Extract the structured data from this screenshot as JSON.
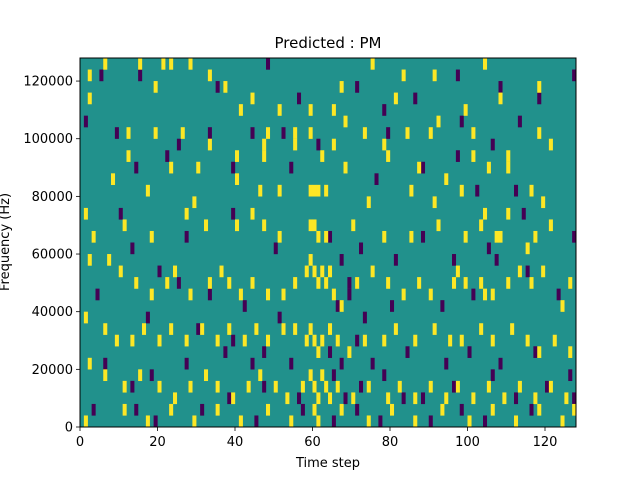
{
  "chart_data": {
    "type": "heatmap",
    "title": "Predicted : PM",
    "xlabel": "Time step",
    "ylabel": "Frequency (Hz)",
    "xlim": [
      0,
      128
    ],
    "ylim": [
      0,
      128000
    ],
    "x_ticks": [
      0,
      20,
      40,
      60,
      80,
      100,
      120
    ],
    "x_tick_labels": [
      "0",
      "20",
      "40",
      "60",
      "80",
      "100",
      "120"
    ],
    "y_ticks": [
      0,
      20000,
      40000,
      60000,
      80000,
      100000,
      120000
    ],
    "y_tick_labels": [
      "0",
      "20000",
      "40000",
      "60000",
      "80000",
      "100000",
      "120000"
    ],
    "grid": false,
    "colormap": "viridis",
    "value_levels": {
      "low": 0,
      "background": 0.5,
      "high": 1
    },
    "colors": {
      "low": "#440154",
      "background": "#21918c",
      "high": "#fde725"
    },
    "cell_size": {
      "time_steps": 1,
      "hz": 4000
    },
    "high_cells": [
      [
        2,
        120000
      ],
      [
        2,
        112000
      ],
      [
        6,
        124000
      ],
      [
        15,
        124000
      ],
      [
        19,
        116000
      ],
      [
        23,
        124000
      ],
      [
        28,
        124000
      ],
      [
        33,
        120000
      ],
      [
        41,
        108000
      ],
      [
        44,
        112000
      ],
      [
        48,
        100000
      ],
      [
        51,
        108000
      ],
      [
        59,
        108000
      ],
      [
        65,
        108000
      ],
      [
        68,
        104000
      ],
      [
        75,
        124000
      ],
      [
        81,
        112000
      ],
      [
        91,
        120000
      ],
      [
        92,
        104000
      ],
      [
        99,
        108000
      ],
      [
        104,
        124000
      ],
      [
        108,
        112000
      ],
      [
        121,
        96000
      ],
      [
        118,
        116000
      ],
      [
        12,
        100000
      ],
      [
        19,
        100000
      ],
      [
        26,
        100000
      ],
      [
        33,
        96000
      ],
      [
        40,
        92000
      ],
      [
        47,
        96000
      ],
      [
        55,
        100000
      ],
      [
        59,
        100000
      ],
      [
        65,
        96000
      ],
      [
        73,
        100000
      ],
      [
        78,
        96000
      ],
      [
        84,
        100000
      ],
      [
        90,
        100000
      ],
      [
        101,
        100000
      ],
      [
        110,
        92000
      ],
      [
        118,
        100000
      ],
      [
        12,
        92000
      ],
      [
        23,
        88000
      ],
      [
        30,
        88000
      ],
      [
        47,
        92000
      ],
      [
        55,
        96000
      ],
      [
        62,
        92000
      ],
      [
        68,
        88000
      ],
      [
        79,
        92000
      ],
      [
        87,
        88000
      ],
      [
        94,
        84000
      ],
      [
        101,
        92000
      ],
      [
        105,
        88000
      ],
      [
        110,
        88000
      ],
      [
        116,
        80000
      ],
      [
        8,
        84000
      ],
      [
        17,
        80000
      ],
      [
        29,
        76000
      ],
      [
        40,
        84000
      ],
      [
        46,
        80000
      ],
      [
        51,
        80000
      ],
      [
        59,
        80000
      ],
      [
        60,
        80000
      ],
      [
        61,
        80000
      ],
      [
        63,
        80000
      ],
      [
        74,
        76000
      ],
      [
        85,
        80000
      ],
      [
        91,
        76000
      ],
      [
        98,
        80000
      ],
      [
        104,
        72000
      ],
      [
        110,
        72000
      ],
      [
        119,
        76000
      ],
      [
        1,
        72000
      ],
      [
        3,
        64000
      ],
      [
        11,
        68000
      ],
      [
        18,
        64000
      ],
      [
        27,
        72000
      ],
      [
        32,
        68000
      ],
      [
        40,
        68000
      ],
      [
        44,
        72000
      ],
      [
        47,
        68000
      ],
      [
        51,
        64000
      ],
      [
        59,
        68000
      ],
      [
        60,
        68000
      ],
      [
        61,
        64000
      ],
      [
        63,
        64000
      ],
      [
        70,
        68000
      ],
      [
        78,
        64000
      ],
      [
        85,
        64000
      ],
      [
        92,
        68000
      ],
      [
        99,
        64000
      ],
      [
        103,
        68000
      ],
      [
        107,
        64000
      ],
      [
        108,
        64000
      ],
      [
        115,
        60000
      ],
      [
        117,
        64000
      ],
      [
        121,
        68000
      ],
      [
        2,
        56000
      ],
      [
        7,
        56000
      ],
      [
        10,
        52000
      ],
      [
        14,
        48000
      ],
      [
        18,
        44000
      ],
      [
        22,
        48000
      ],
      [
        24,
        52000
      ],
      [
        28,
        44000
      ],
      [
        33,
        48000
      ],
      [
        36,
        52000
      ],
      [
        38,
        48000
      ],
      [
        41,
        44000
      ],
      [
        44,
        48000
      ],
      [
        48,
        44000
      ],
      [
        52,
        44000
      ],
      [
        55,
        48000
      ],
      [
        58,
        52000
      ],
      [
        59,
        56000
      ],
      [
        60,
        52000
      ],
      [
        61,
        48000
      ],
      [
        62,
        52000
      ],
      [
        63,
        48000
      ],
      [
        64,
        52000
      ],
      [
        65,
        44000
      ],
      [
        67,
        40000
      ],
      [
        71,
        48000
      ],
      [
        75,
        52000
      ],
      [
        79,
        48000
      ],
      [
        83,
        44000
      ],
      [
        87,
        48000
      ],
      [
        90,
        44000
      ],
      [
        96,
        48000
      ],
      [
        97,
        52000
      ],
      [
        99,
        48000
      ],
      [
        103,
        48000
      ],
      [
        104,
        44000
      ],
      [
        106,
        44000
      ],
      [
        110,
        48000
      ],
      [
        113,
        52000
      ],
      [
        116,
        48000
      ],
      [
        119,
        52000
      ],
      [
        124,
        40000
      ],
      [
        126,
        48000
      ],
      [
        1,
        36000
      ],
      [
        6,
        32000
      ],
      [
        9,
        28000
      ],
      [
        13,
        28000
      ],
      [
        16,
        32000
      ],
      [
        20,
        28000
      ],
      [
        23,
        32000
      ],
      [
        27,
        28000
      ],
      [
        31,
        32000
      ],
      [
        35,
        28000
      ],
      [
        38,
        32000
      ],
      [
        42,
        28000
      ],
      [
        45,
        32000
      ],
      [
        48,
        28000
      ],
      [
        52,
        32000
      ],
      [
        55,
        32000
      ],
      [
        58,
        28000
      ],
      [
        59,
        32000
      ],
      [
        60,
        28000
      ],
      [
        61,
        24000
      ],
      [
        62,
        28000
      ],
      [
        64,
        32000
      ],
      [
        66,
        28000
      ],
      [
        69,
        24000
      ],
      [
        73,
        28000
      ],
      [
        78,
        28000
      ],
      [
        81,
        32000
      ],
      [
        86,
        28000
      ],
      [
        91,
        32000
      ],
      [
        95,
        28000
      ],
      [
        98,
        28000
      ],
      [
        103,
        32000
      ],
      [
        106,
        28000
      ],
      [
        111,
        32000
      ],
      [
        115,
        28000
      ],
      [
        118,
        24000
      ],
      [
        122,
        28000
      ],
      [
        126,
        24000
      ],
      [
        2,
        20000
      ],
      [
        6,
        16000
      ],
      [
        11,
        12000
      ],
      [
        15,
        16000
      ],
      [
        20,
        12000
      ],
      [
        24,
        8000
      ],
      [
        28,
        12000
      ],
      [
        32,
        16000
      ],
      [
        35,
        12000
      ],
      [
        39,
        8000
      ],
      [
        43,
        12000
      ],
      [
        46,
        16000
      ],
      [
        50,
        12000
      ],
      [
        53,
        8000
      ],
      [
        57,
        12000
      ],
      [
        59,
        16000
      ],
      [
        60,
        12000
      ],
      [
        61,
        8000
      ],
      [
        62,
        16000
      ],
      [
        63,
        12000
      ],
      [
        64,
        8000
      ],
      [
        66,
        12000
      ],
      [
        70,
        8000
      ],
      [
        74,
        12000
      ],
      [
        79,
        8000
      ],
      [
        82,
        12000
      ],
      [
        86,
        8000
      ],
      [
        90,
        12000
      ],
      [
        94,
        8000
      ],
      [
        97,
        12000
      ],
      [
        101,
        8000
      ],
      [
        105,
        12000
      ],
      [
        109,
        8000
      ],
      [
        113,
        12000
      ],
      [
        117,
        8000
      ],
      [
        121,
        12000
      ],
      [
        125,
        8000
      ],
      [
        127,
        4000
      ],
      [
        1,
        0
      ],
      [
        11,
        4000
      ],
      [
        17,
        0
      ],
      [
        23,
        4000
      ],
      [
        29,
        0
      ],
      [
        35,
        4000
      ],
      [
        41,
        0
      ],
      [
        48,
        4000
      ],
      [
        54,
        0
      ],
      [
        60,
        4000
      ],
      [
        61,
        0
      ],
      [
        67,
        4000
      ],
      [
        74,
        0
      ],
      [
        80,
        4000
      ],
      [
        86,
        0
      ],
      [
        93,
        4000
      ],
      [
        100,
        0
      ],
      [
        106,
        4000
      ],
      [
        112,
        0
      ],
      [
        118,
        4000
      ],
      [
        124,
        0
      ],
      [
        21,
        124000
      ],
      [
        37,
        116000
      ],
      [
        67,
        116000
      ],
      [
        83,
        120000
      ]
    ],
    "low_cells": [
      [
        5,
        120000
      ],
      [
        15,
        120000
      ],
      [
        35,
        116000
      ],
      [
        48,
        124000
      ],
      [
        56,
        112000
      ],
      [
        71,
        116000
      ],
      [
        78,
        108000
      ],
      [
        86,
        112000
      ],
      [
        97,
        120000
      ],
      [
        108,
        116000
      ],
      [
        118,
        112000
      ],
      [
        127,
        120000
      ],
      [
        1,
        104000
      ],
      [
        9,
        100000
      ],
      [
        25,
        96000
      ],
      [
        33,
        100000
      ],
      [
        44,
        100000
      ],
      [
        52,
        100000
      ],
      [
        61,
        96000
      ],
      [
        79,
        100000
      ],
      [
        98,
        104000
      ],
      [
        106,
        96000
      ],
      [
        113,
        104000
      ],
      [
        14,
        88000
      ],
      [
        22,
        92000
      ],
      [
        39,
        88000
      ],
      [
        54,
        88000
      ],
      [
        76,
        84000
      ],
      [
        88,
        88000
      ],
      [
        97,
        92000
      ],
      [
        102,
        80000
      ],
      [
        112,
        80000
      ],
      [
        10,
        72000
      ],
      [
        27,
        64000
      ],
      [
        39,
        72000
      ],
      [
        50,
        60000
      ],
      [
        64,
        64000
      ],
      [
        67,
        56000
      ],
      [
        69,
        48000
      ],
      [
        72,
        60000
      ],
      [
        81,
        56000
      ],
      [
        88,
        64000
      ],
      [
        96,
        56000
      ],
      [
        105,
        60000
      ],
      [
        114,
        72000
      ],
      [
        127,
        64000
      ],
      [
        13,
        60000
      ],
      [
        20,
        52000
      ],
      [
        25,
        48000
      ],
      [
        33,
        44000
      ],
      [
        42,
        40000
      ],
      [
        51,
        36000
      ],
      [
        66,
        40000
      ],
      [
        69,
        44000
      ],
      [
        73,
        36000
      ],
      [
        80,
        40000
      ],
      [
        93,
        40000
      ],
      [
        101,
        44000
      ],
      [
        107,
        56000
      ],
      [
        115,
        52000
      ],
      [
        123,
        44000
      ],
      [
        4,
        44000
      ],
      [
        17,
        36000
      ],
      [
        30,
        32000
      ],
      [
        39,
        28000
      ],
      [
        47,
        24000
      ],
      [
        54,
        20000
      ],
      [
        64,
        24000
      ],
      [
        67,
        20000
      ],
      [
        71,
        28000
      ],
      [
        75,
        20000
      ],
      [
        84,
        24000
      ],
      [
        94,
        20000
      ],
      [
        100,
        24000
      ],
      [
        108,
        20000
      ],
      [
        117,
        24000
      ],
      [
        6,
        20000
      ],
      [
        13,
        12000
      ],
      [
        18,
        16000
      ],
      [
        27,
        20000
      ],
      [
        37,
        24000
      ],
      [
        44,
        20000
      ],
      [
        47,
        12000
      ],
      [
        56,
        8000
      ],
      [
        65,
        16000
      ],
      [
        68,
        8000
      ],
      [
        72,
        12000
      ],
      [
        78,
        16000
      ],
      [
        88,
        8000
      ],
      [
        96,
        12000
      ],
      [
        106,
        16000
      ],
      [
        112,
        8000
      ],
      [
        120,
        12000
      ],
      [
        126,
        16000
      ],
      [
        3,
        4000
      ],
      [
        14,
        4000
      ],
      [
        19,
        0
      ],
      [
        31,
        4000
      ],
      [
        38,
        8000
      ],
      [
        45,
        0
      ],
      [
        57,
        4000
      ],
      [
        65,
        0
      ],
      [
        71,
        4000
      ],
      [
        77,
        0
      ],
      [
        83,
        8000
      ],
      [
        90,
        0
      ],
      [
        98,
        4000
      ],
      [
        104,
        0
      ],
      [
        116,
        4000
      ],
      [
        127,
        8000
      ]
    ]
  }
}
